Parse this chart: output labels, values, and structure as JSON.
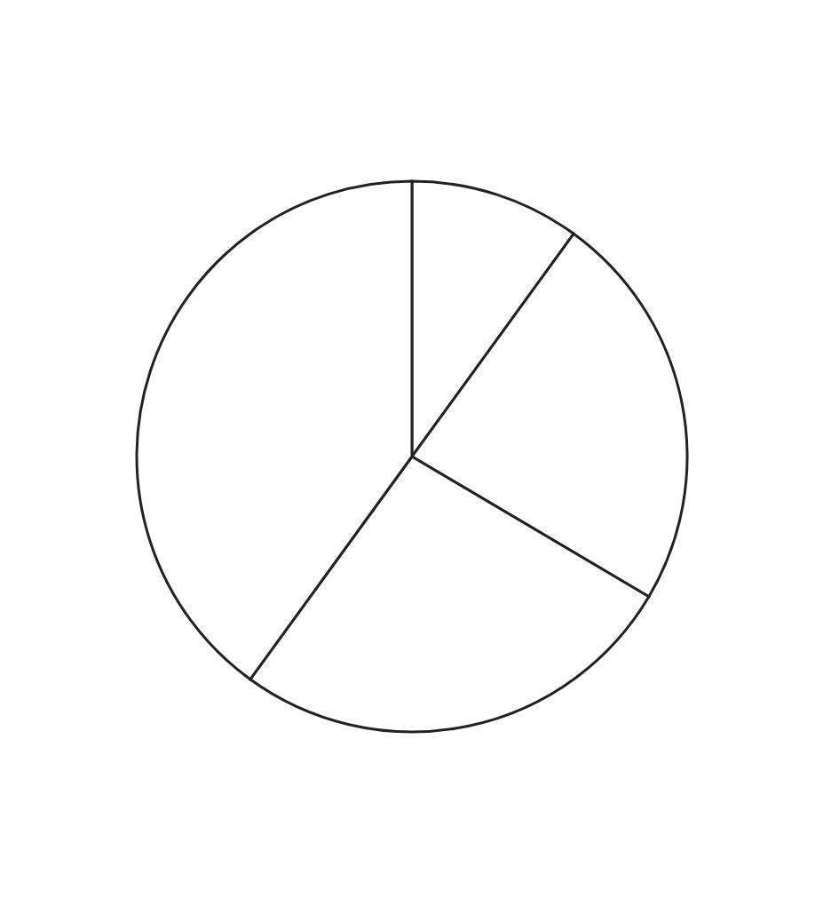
{
  "chart_data": {
    "type": "pie",
    "categories": [
      null,
      null,
      null,
      null
    ],
    "values": [
      10,
      23.5,
      26.5,
      40
    ],
    "colors": [
      "#ffffff",
      "#ffffff",
      "#ffffff",
      "#ffffff"
    ]
  }
}
